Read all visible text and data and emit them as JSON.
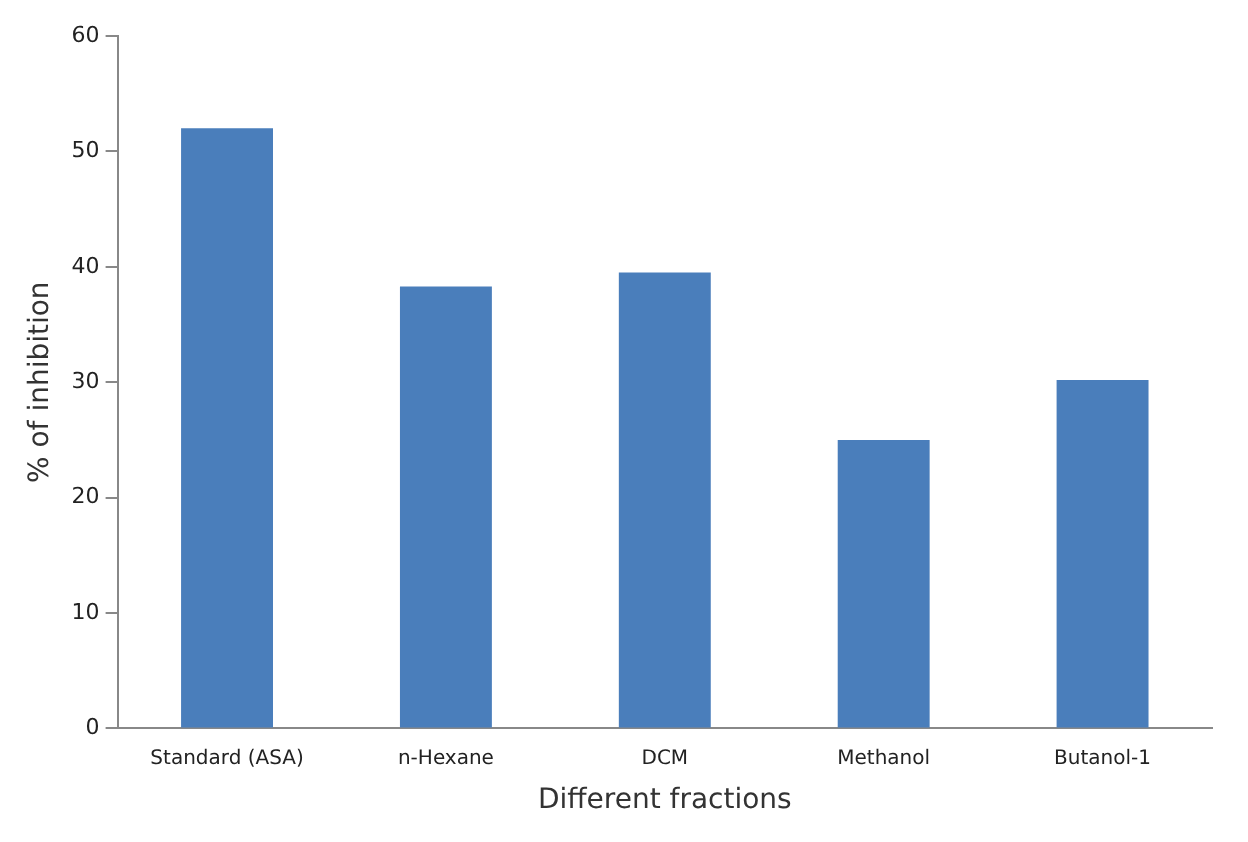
{
  "chart_data": {
    "type": "bar",
    "xlabel": "Different fractions",
    "ylabel": "% of inhibition",
    "categories": [
      "Standard (ASA)",
      "n-Hexane",
      "DCM",
      "Methanol",
      "Butanol-1"
    ],
    "values": [
      52,
      38.3,
      39.5,
      25,
      30.2
    ],
    "color": "#4a7ebb",
    "ylim": [
      0,
      60
    ],
    "yticks": [
      0,
      10,
      20,
      30,
      40,
      50,
      60
    ],
    "grid": false,
    "legend": false
  }
}
